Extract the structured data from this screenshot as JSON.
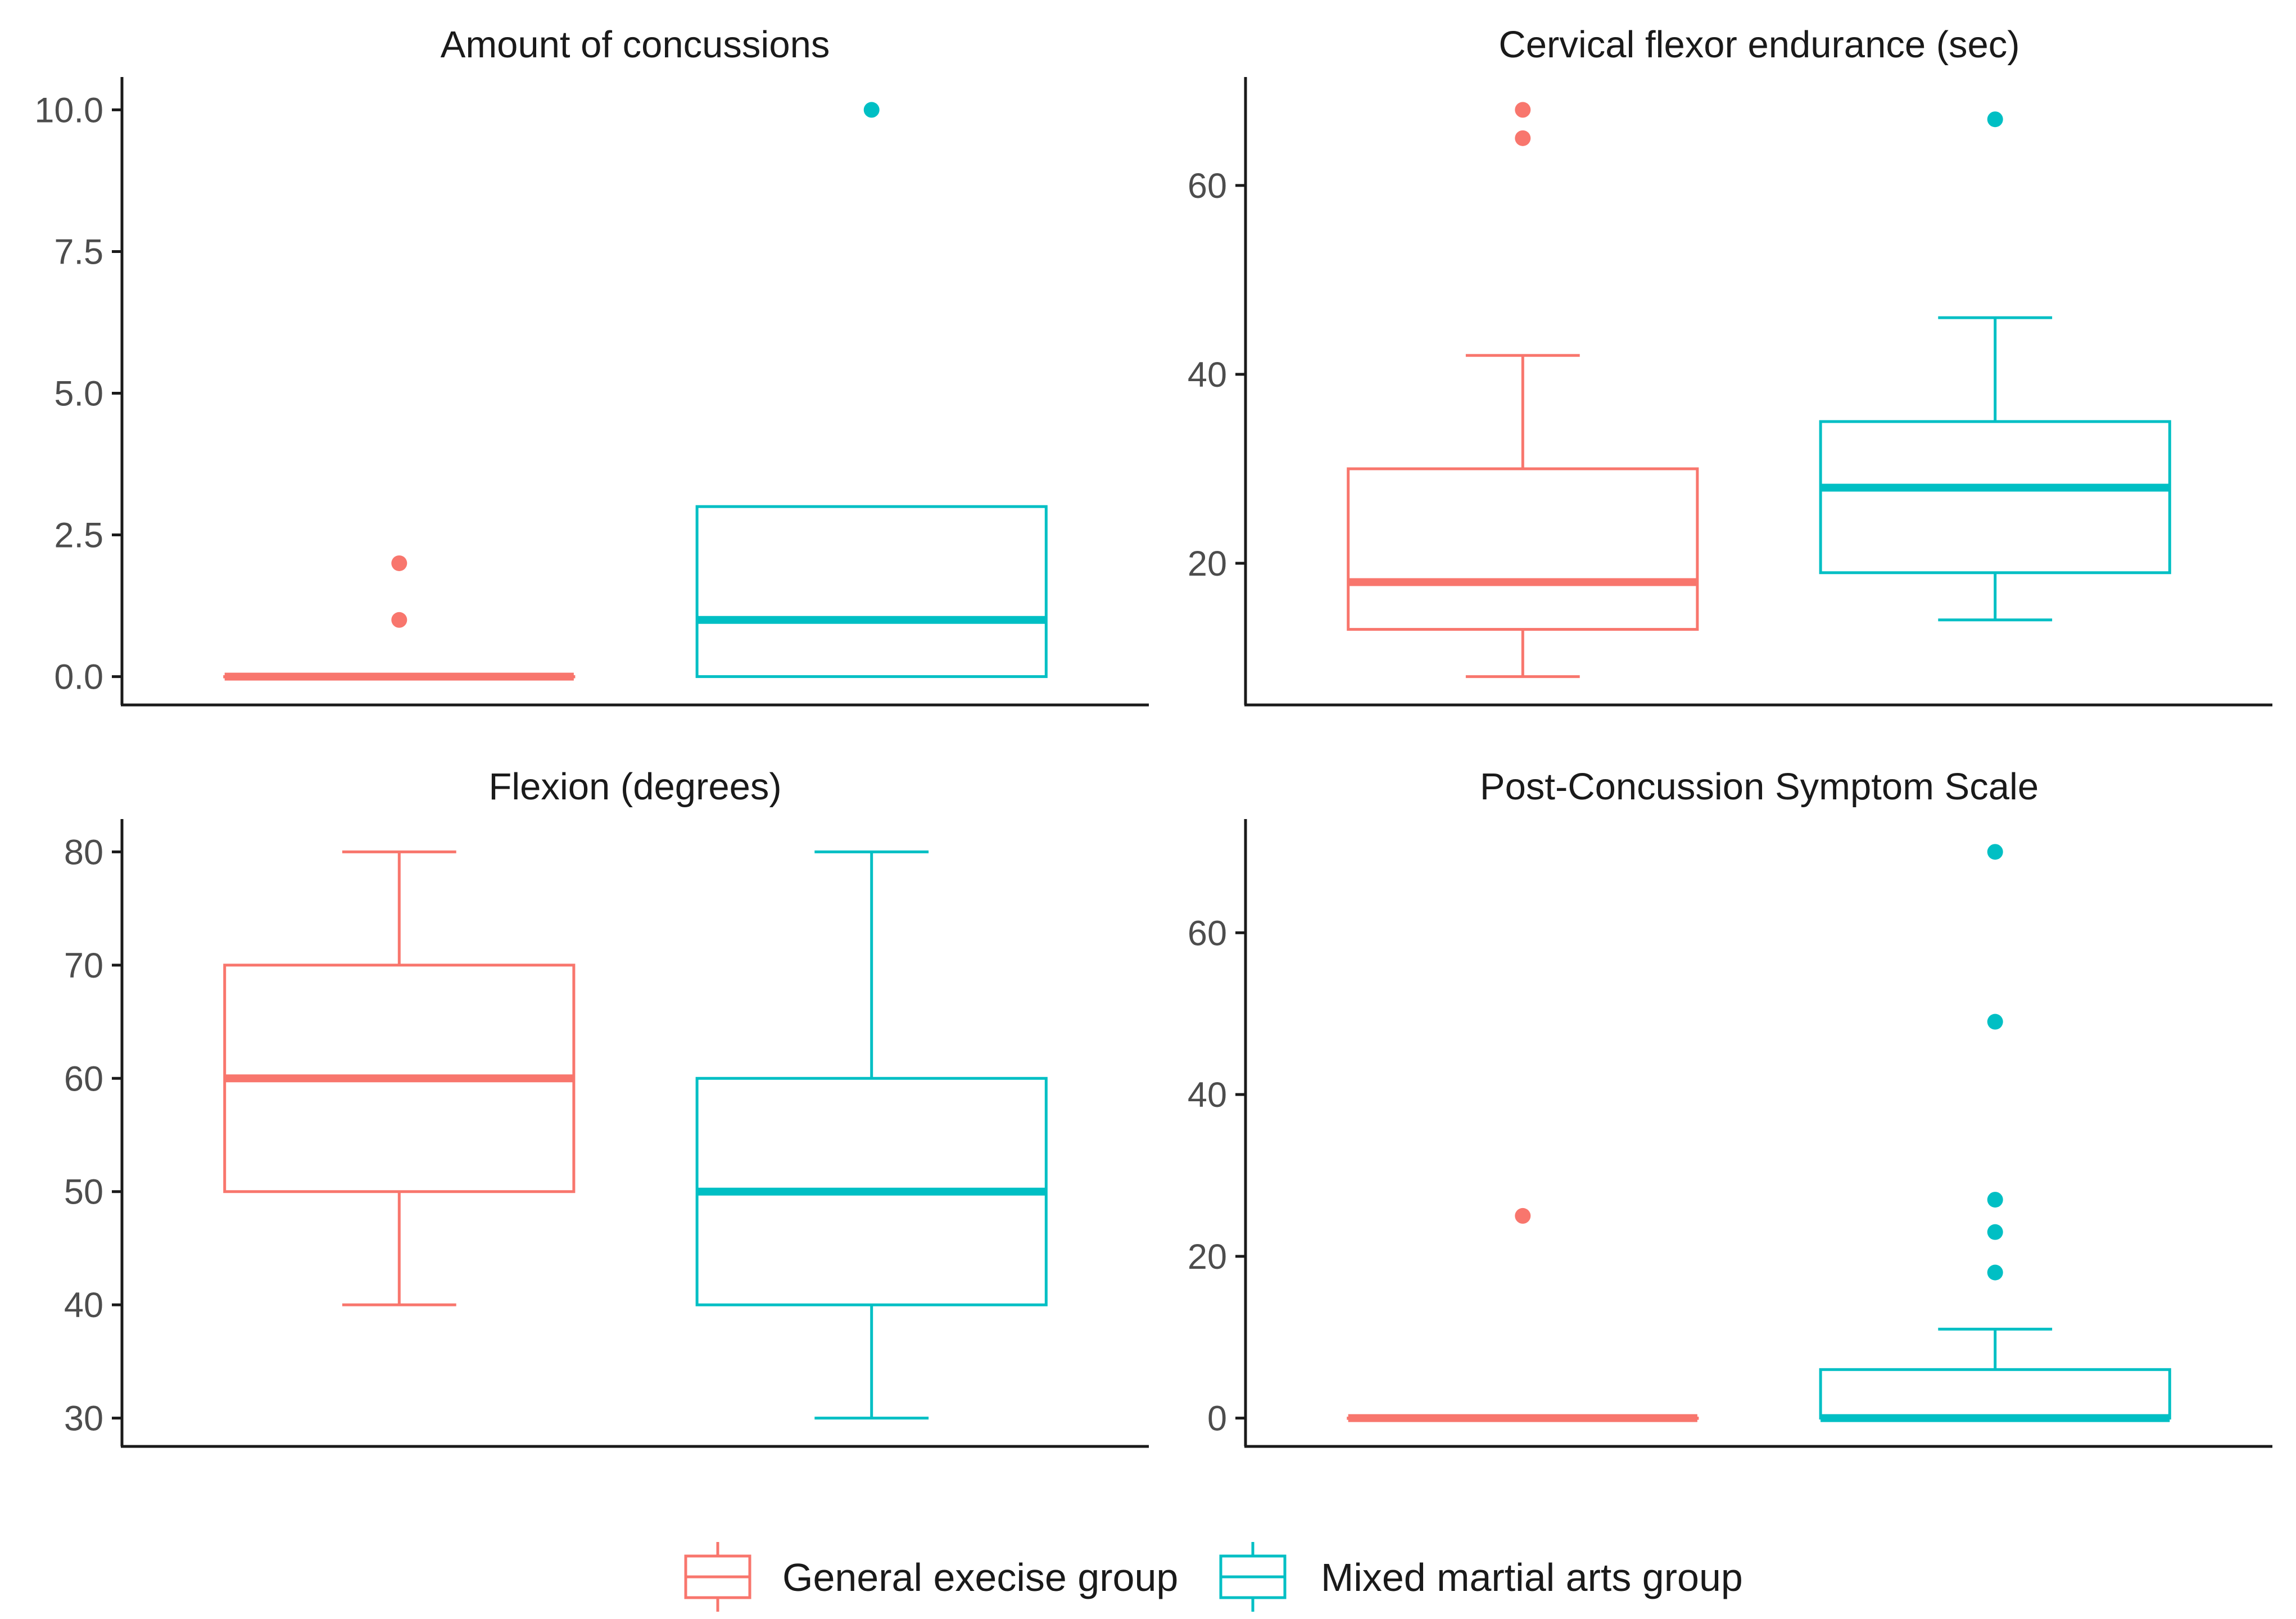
{
  "colors": {
    "General execise group": "#F8766D",
    "Mixed martial arts group": "#00BFC4",
    "axis": "#1a1a1a",
    "tick_label": "#4d4d4d"
  },
  "legend": {
    "items": [
      {
        "label": "General execise group"
      },
      {
        "label": "Mixed martial arts group"
      }
    ]
  },
  "chart_data": [
    {
      "type": "boxplot",
      "title": "Amount of concussions",
      "ylim": [
        -0.5,
        10.5
      ],
      "yticks": [
        0,
        2.5,
        5,
        7.5,
        10
      ],
      "ytick_labels": [
        "0.0",
        "2.5",
        "5.0",
        "7.5",
        "10.0"
      ],
      "series": [
        {
          "name": "General execise group",
          "min": 0,
          "q1": 0,
          "median": 0,
          "q3": 0,
          "max": 0,
          "outliers": [
            1,
            2
          ]
        },
        {
          "name": "Mixed martial arts group",
          "min": 0,
          "q1": 0,
          "median": 1,
          "q3": 3,
          "max": 3,
          "outliers": [
            10
          ]
        }
      ]
    },
    {
      "type": "boxplot",
      "title": "Cervical flexor endurance (sec)",
      "ylim": [
        5,
        71
      ],
      "yticks": [
        20,
        40,
        60
      ],
      "ytick_labels": [
        "20",
        "40",
        "60"
      ],
      "series": [
        {
          "name": "General execise group",
          "min": 8,
          "q1": 13,
          "median": 18,
          "q3": 30,
          "max": 42,
          "outliers": [
            65,
            68
          ]
        },
        {
          "name": "Mixed martial arts group",
          "min": 14,
          "q1": 19,
          "median": 28,
          "q3": 35,
          "max": 46,
          "outliers": [
            67
          ]
        }
      ]
    },
    {
      "type": "boxplot",
      "title": "Flexion (degrees)",
      "ylim": [
        27.5,
        82.5
      ],
      "yticks": [
        30,
        40,
        50,
        60,
        70,
        80
      ],
      "ytick_labels": [
        "30",
        "40",
        "50",
        "60",
        "70",
        "80"
      ],
      "series": [
        {
          "name": "General execise group",
          "min": 40,
          "q1": 50,
          "median": 60,
          "q3": 70,
          "max": 80,
          "outliers": []
        },
        {
          "name": "Mixed martial arts group",
          "min": 30,
          "q1": 40,
          "median": 50,
          "q3": 60,
          "max": 80,
          "outliers": []
        }
      ]
    },
    {
      "type": "boxplot",
      "title": "Post-Concussion Symptom Scale",
      "ylim": [
        -3.5,
        73.5
      ],
      "yticks": [
        0,
        20,
        40,
        60
      ],
      "ytick_labels": [
        "0",
        "20",
        "40",
        "60"
      ],
      "series": [
        {
          "name": "General execise group",
          "min": 0,
          "q1": 0,
          "median": 0,
          "q3": 0,
          "max": 0,
          "outliers": [
            25
          ]
        },
        {
          "name": "Mixed martial arts group",
          "min": 0,
          "q1": 0,
          "median": 0,
          "q3": 6,
          "max": 11,
          "outliers": [
            18,
            23,
            27,
            49,
            70
          ]
        }
      ]
    }
  ]
}
